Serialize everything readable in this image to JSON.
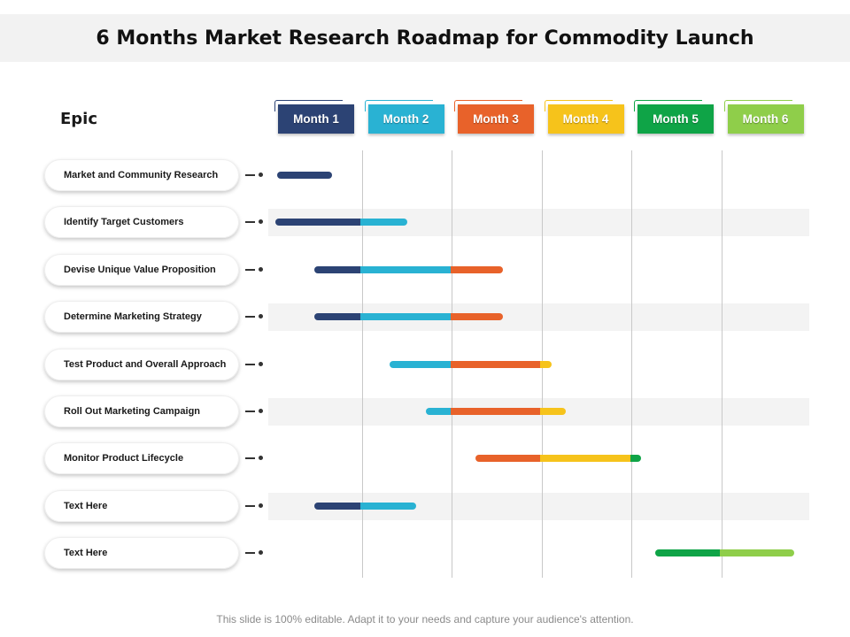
{
  "title": "6 Months Market Research Roadmap for Commodity Launch",
  "epic_heading": "Epic",
  "footer": "This slide is 100% editable. Adapt it to your needs and capture your audience's attention.",
  "colors": {
    "month1": "#2c4374",
    "month2": "#29b2d3",
    "month3": "#e8622a",
    "month4": "#f6c31b",
    "month5": "#0fa447",
    "month6": "#8fce4a"
  },
  "months": [
    {
      "label": "Month 1",
      "color": "#2c4374"
    },
    {
      "label": "Month 2",
      "color": "#29b2d3"
    },
    {
      "label": "Month 3",
      "color": "#e8622a"
    },
    {
      "label": "Month 4",
      "color": "#f6c31b"
    },
    {
      "label": "Month 5",
      "color": "#0fa447"
    },
    {
      "label": "Month 6",
      "color": "#8fce4a"
    }
  ],
  "epics": [
    {
      "label": "Market and Community Research",
      "start": 0.07,
      "end": 0.68
    },
    {
      "label": "Identify Target Customers",
      "start": 0.05,
      "end": 1.52
    },
    {
      "label": "Devise Unique Value Proposition",
      "start": 0.48,
      "end": 2.58
    },
    {
      "label": "Determine Marketing Strategy",
      "start": 0.48,
      "end": 2.58
    },
    {
      "label": "Test Product and Overall Approach",
      "start": 1.32,
      "end": 3.12
    },
    {
      "label": "Roll Out Marketing Campaign",
      "start": 1.72,
      "end": 3.28
    },
    {
      "label": "Monitor Product Lifecycle",
      "start": 2.28,
      "end": 4.12
    },
    {
      "label": "Text Here",
      "start": 0.48,
      "end": 1.62
    },
    {
      "label": "Text Here",
      "start": 4.28,
      "end": 5.82
    }
  ]
}
